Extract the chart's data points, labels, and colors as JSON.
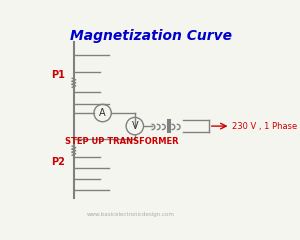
{
  "title": "Magnetization Curve",
  "title_color": "#0000cc",
  "title_fontsize": 10,
  "bg_color": "#f5f5f0",
  "line_color": "#808080",
  "label_P1": "P1",
  "label_P2": "P2",
  "label_voltage": "230 V , 1 Phase",
  "label_transformer": "STEP UP TRANSFORMER",
  "label_color": "#cc0000",
  "website": "www.basicelectronicdesign.com",
  "website_color": "#aaaaaa",
  "ammeter_label": "A",
  "voltmeter_label": "V"
}
